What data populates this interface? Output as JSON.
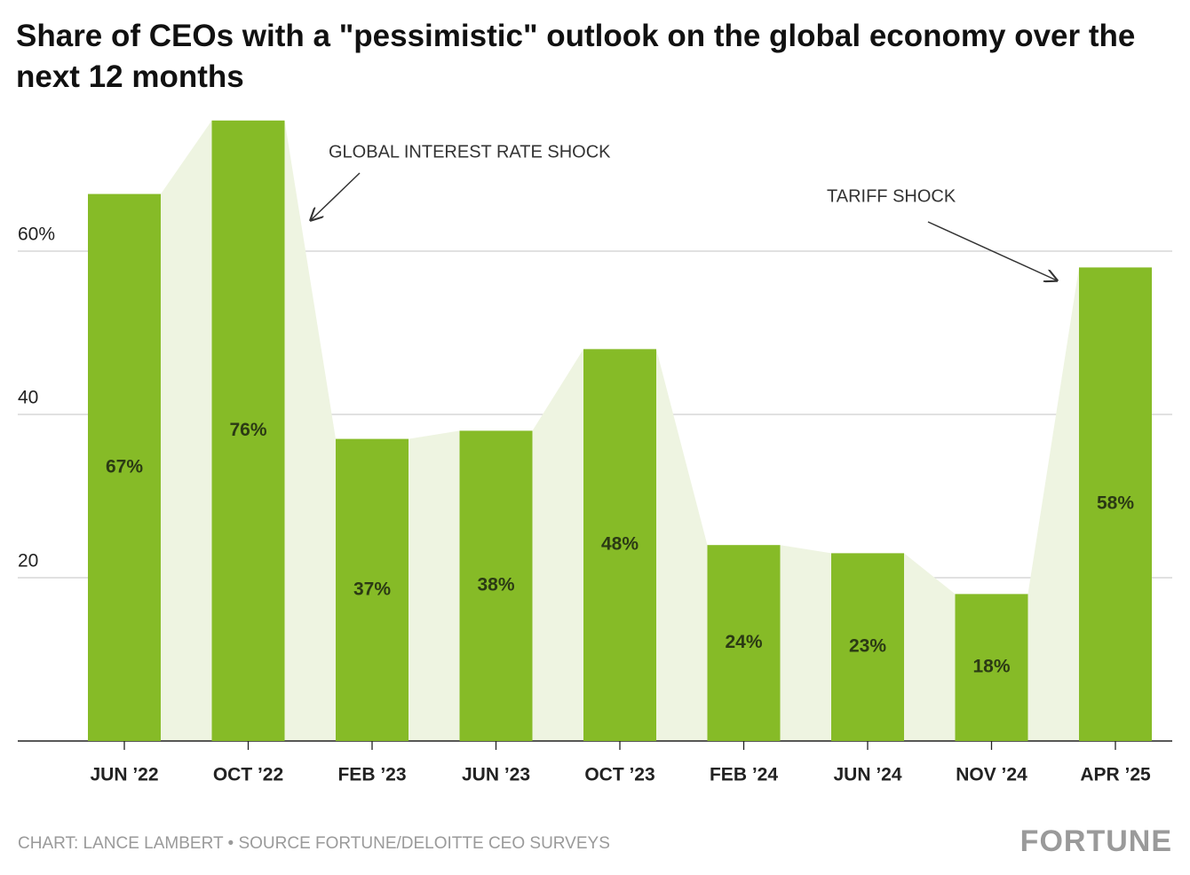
{
  "chart_data": {
    "type": "bar",
    "title": "Share of CEOs with a \"pessimistic\" outlook on the global economy over the next 12 months",
    "categories": [
      "JUN ’22",
      "OCT ’22",
      "FEB ’23",
      "JUN ’23",
      "OCT ’23",
      "FEB ’24",
      "JUN ’24",
      "NOV ’24",
      "APR ’25"
    ],
    "values": [
      67,
      76,
      37,
      38,
      48,
      24,
      23,
      18,
      58
    ],
    "value_labels": [
      "67%",
      "76%",
      "37%",
      "38%",
      "48%",
      "24%",
      "23%",
      "18%",
      "58%"
    ],
    "color": "#86bb27",
    "area_color": "#eef4e1",
    "ylim": [
      0,
      80
    ],
    "yticks": [
      20,
      40,
      {
        "value": 60,
        "label": "60%"
      }
    ],
    "grid": true,
    "annotations": [
      "GLOBAL INTEREST RATE SHOCK",
      "TARIFF SHOCK"
    ],
    "footer": "CHART: LANCE LAMBERT • SOURCE FORTUNE/DELOITTE CEO SURVEYS",
    "brand": "FORTUNE"
  }
}
